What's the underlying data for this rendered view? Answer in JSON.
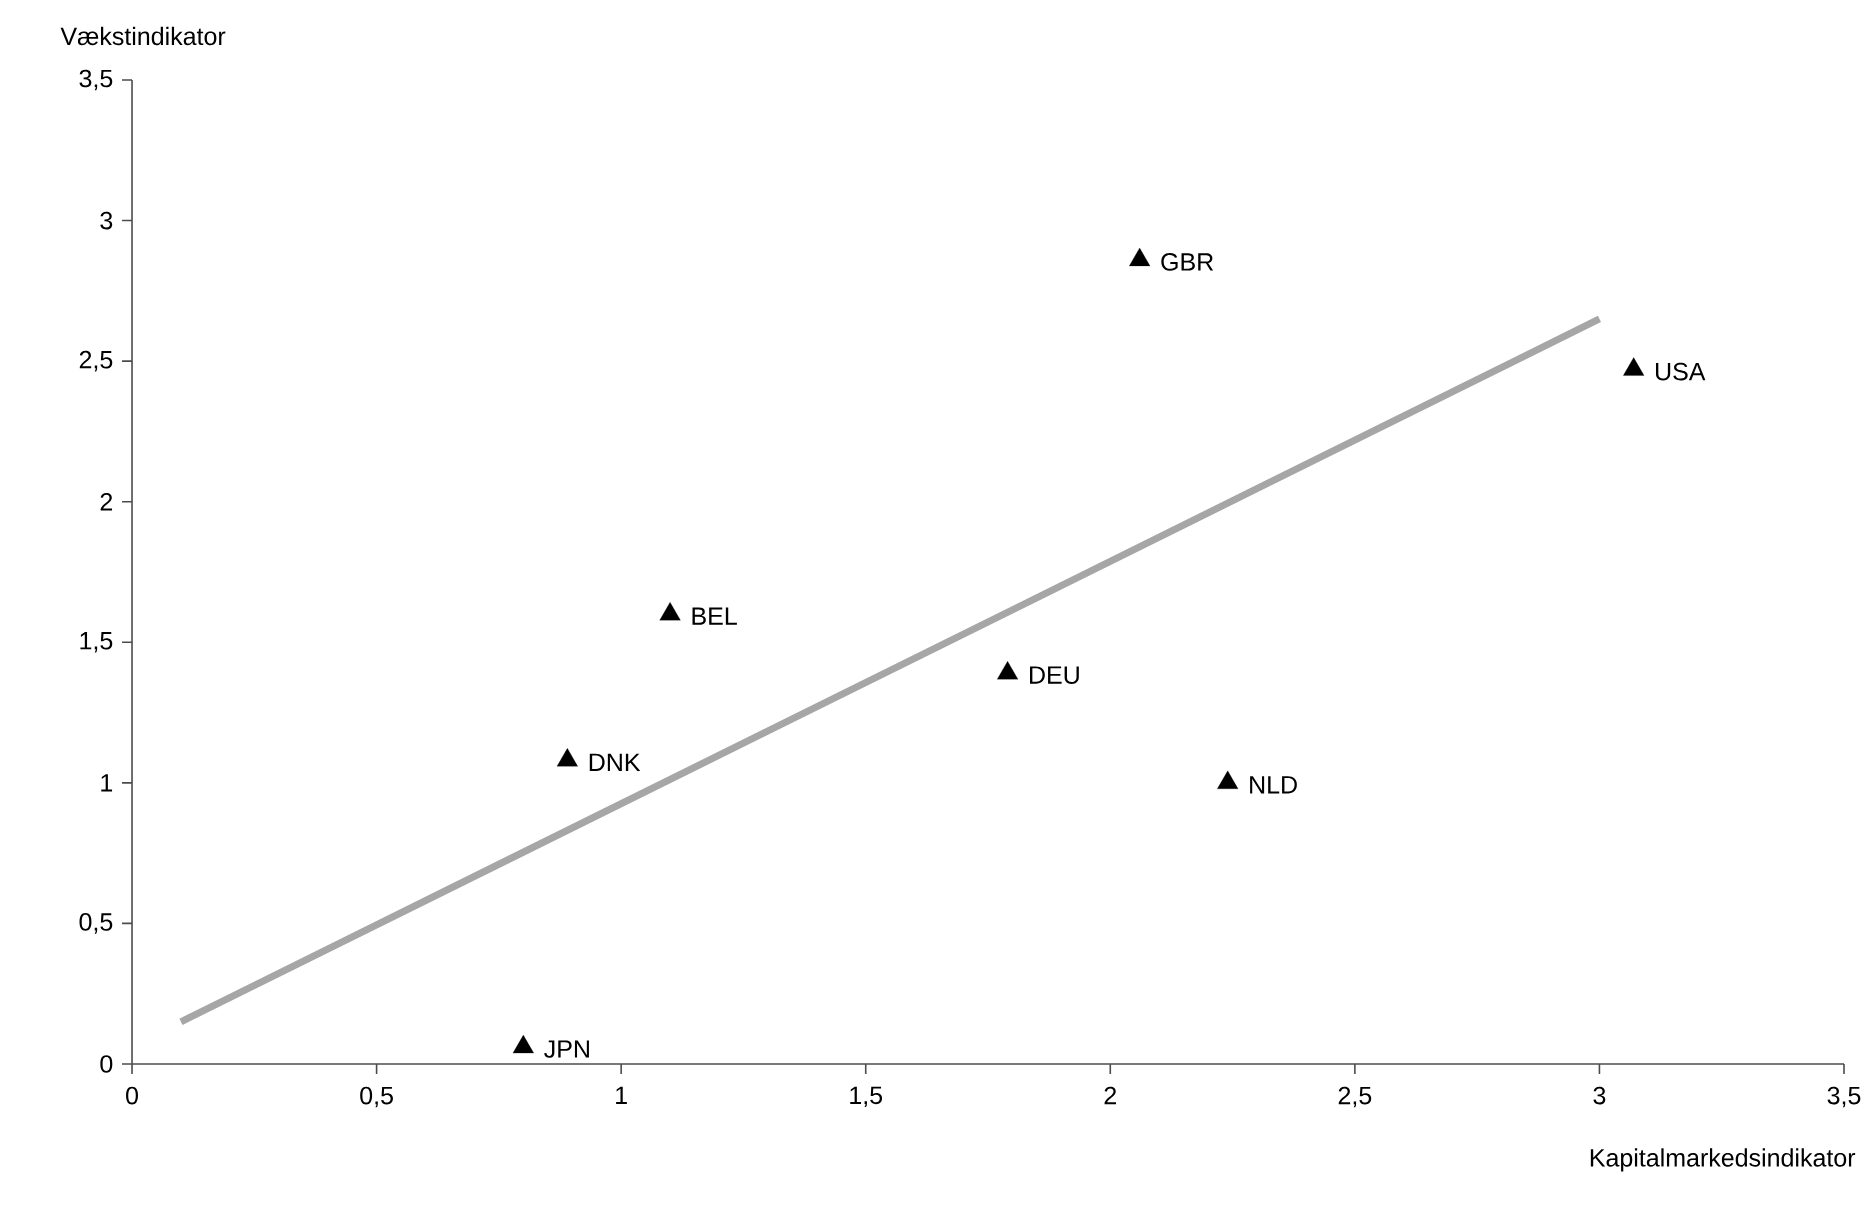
{
  "chart_data": {
    "type": "scatter",
    "xlabel": "Kapitalmarkedsindikator",
    "ylabel": "Vækstindikator",
    "xlim": [
      0,
      3.5
    ],
    "ylim": [
      0,
      3.5
    ],
    "xticks": [
      0,
      {
        "value": 0.5,
        "label": "0,5"
      },
      1,
      {
        "value": 1.5,
        "label": "1,5"
      },
      2,
      {
        "value": 2.5,
        "label": "2,5"
      },
      3,
      {
        "value": 3.5,
        "label": "3,5"
      }
    ],
    "yticks": [
      0,
      {
        "value": 0.5,
        "label": "0,5"
      },
      1,
      {
        "value": 1.5,
        "label": "1,5"
      },
      2,
      {
        "value": 2.5,
        "label": "2,5"
      },
      3,
      {
        "value": 3.5,
        "label": "3,5"
      }
    ],
    "grid": false,
    "series": [
      {
        "type": "line",
        "marker": "none",
        "color": "#a6a6a6",
        "x": [
          0.1,
          3.0
        ],
        "values": [
          0.15,
          2.65
        ]
      },
      {
        "marker": "triangle",
        "color": "#000000",
        "x": [
          2.06,
          3.07,
          1.1,
          1.79,
          0.89,
          2.24,
          0.8
        ],
        "values": [
          2.86,
          2.47,
          1.6,
          1.39,
          1.08,
          1.0,
          0.06
        ],
        "value_labels": [
          "GBR",
          "USA",
          "BEL",
          "DEU",
          "DNK",
          "NLD",
          "JPN"
        ]
      }
    ]
  }
}
